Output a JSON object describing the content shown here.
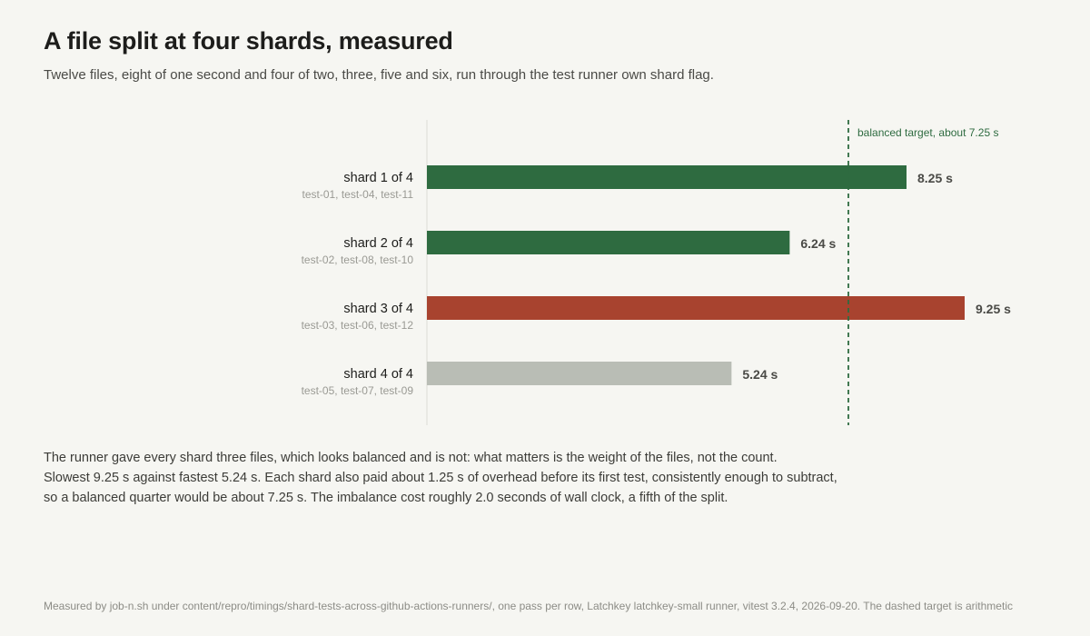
{
  "header": {
    "title": "A file split at four shards, measured",
    "subtitle": "Twelve files, eight of one second and four of two, three, five and six, run through the test runner own shard flag."
  },
  "chart_data": {
    "type": "bar",
    "orientation": "horizontal",
    "categories": [
      "shard 1 of 4",
      "shard 2 of 4",
      "shard 3 of 4",
      "shard 4 of 4"
    ],
    "sublabels": [
      "test-01, test-04, test-11",
      "test-02, test-08, test-10",
      "test-03, test-06, test-12",
      "test-05, test-07, test-09"
    ],
    "values": [
      8.25,
      6.24,
      9.25,
      5.24
    ],
    "value_labels": [
      "8.25 s",
      "6.24 s",
      "9.25 s",
      "5.24 s"
    ],
    "bar_colors": [
      "#2e6b40",
      "#2e6b40",
      "#a8432f",
      "#b9bdb5"
    ],
    "xlim": [
      0,
      9.25
    ],
    "grid": false,
    "reference_line": {
      "value": 7.25,
      "label": "balanced target, about 7.25 s",
      "color": "#2e6b40",
      "style": "dashed"
    }
  },
  "narrative": [
    "The runner gave every shard three files, which looks balanced and is not: what matters is the weight of the files, not the count.",
    "Slowest 9.25 s against fastest 5.24 s. Each shard also paid about 1.25 s of overhead before its first test, consistently enough to subtract,",
    "so a balanced quarter would be about 7.25 s. The imbalance cost roughly 2.0 seconds of wall clock, a fifth of the split."
  ],
  "footer": "Measured by job-n.sh under content/repro/timings/shard-tests-across-github-actions-runners/, one pass per row, Latchkey latchkey-small runner, vitest 3.2.4, 2026-09-20. The dashed target is arithmetic"
}
